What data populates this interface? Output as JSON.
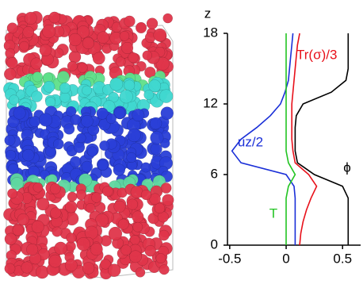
{
  "chart_data": {
    "type": "line",
    "y_label": "z",
    "ylim": [
      0,
      18
    ],
    "yticks": [
      0,
      6,
      12,
      18
    ],
    "xlim": [
      -0.52,
      0.66
    ],
    "xticks": [
      -0.5,
      0,
      0.5
    ],
    "y": [
      0,
      1,
      2,
      3,
      4,
      5,
      6,
      7,
      8,
      9,
      10,
      11,
      12,
      13,
      14,
      15,
      16,
      17,
      18
    ],
    "series": [
      {
        "name": "ϕ",
        "color": "#000000",
        "values": [
          0.55,
          0.55,
          0.55,
          0.55,
          0.55,
          0.5,
          0.25,
          0.1,
          0.08,
          0.08,
          0.08,
          0.09,
          0.15,
          0.4,
          0.53,
          0.55,
          0.55,
          0.55,
          0.55
        ]
      },
      {
        "name": "Tr(σ)/3",
        "color": "#e8101a",
        "values": [
          0.12,
          0.13,
          0.15,
          0.18,
          0.22,
          0.27,
          0.2,
          0.08,
          0.06,
          0.05,
          0.05,
          0.05,
          0.05,
          0.06,
          0.07,
          0.08,
          0.09,
          0.1,
          0.12
        ]
      },
      {
        "name": "uz/2",
        "color": "#1a2fd8",
        "values": [
          0.08,
          0.08,
          0.08,
          0.08,
          0.08,
          0.07,
          0.0,
          -0.4,
          -0.48,
          -0.4,
          -0.26,
          -0.14,
          -0.05,
          -0.01,
          0.02,
          0.03,
          0.04,
          0.05,
          0.06
        ]
      },
      {
        "name": "T",
        "color": "#22c422",
        "values": [
          0,
          0,
          0,
          0,
          0,
          0.02,
          0.08,
          0.02,
          0,
          0,
          0,
          0,
          0,
          0,
          0,
          0,
          0,
          0,
          0
        ]
      }
    ]
  }
}
